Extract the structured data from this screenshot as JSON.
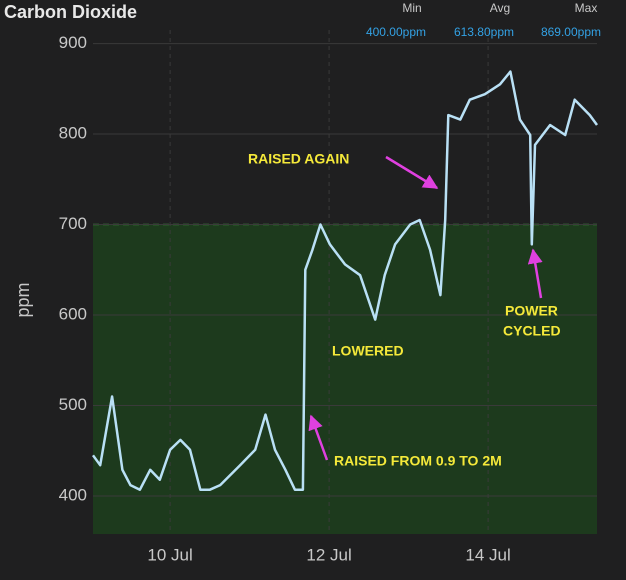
{
  "chart_data": {
    "type": "line",
    "title": "Carbon Dioxide",
    "stats": [
      {
        "label": "Min",
        "value": "400.00ppm"
      },
      {
        "label": "Avg",
        "value": "613.80ppm"
      },
      {
        "label": "Max",
        "value": "869.00ppm"
      }
    ],
    "y_label": "ppm",
    "x": [
      9.03,
      9.12,
      9.27,
      9.4,
      9.5,
      9.62,
      9.75,
      9.87,
      10.0,
      10.13,
      10.25,
      10.38,
      10.5,
      10.63,
      10.88,
      11.07,
      11.2,
      11.32,
      11.45,
      11.57,
      11.67,
      11.7,
      11.79,
      11.89,
      12.01,
      12.2,
      12.39,
      12.58,
      12.7,
      12.83,
      13.02,
      13.14,
      13.27,
      13.4,
      13.46,
      13.5,
      13.65,
      13.77,
      13.96,
      14.15,
      14.28,
      14.4,
      14.53,
      14.55,
      14.59,
      14.78,
      14.97,
      15.09,
      15.28,
      15.37
    ],
    "series": [
      {
        "name": "Carbon Dioxide",
        "color": "#b9e0f5",
        "values": [
          445,
          434,
          510,
          429,
          412,
          407,
          429,
          418,
          451,
          462,
          451,
          407,
          407,
          412,
          434,
          451,
          490,
          451,
          429,
          407,
          407,
          650,
          672,
          700,
          678,
          656,
          644,
          595,
          644,
          678,
          700,
          705,
          672,
          622,
          705,
          821,
          816,
          838,
          844,
          855,
          869,
          816,
          799,
          678,
          788,
          810,
          799,
          838,
          821,
          810
        ]
      }
    ],
    "xlim": [
      9.03,
      15.37
    ],
    "xticks": [
      {
        "value": 10,
        "label": "10 Jul"
      },
      {
        "value": 12,
        "label": "12 Jul"
      },
      {
        "value": 14,
        "label": "14 Jul"
      }
    ],
    "ylim": [
      358,
      915
    ],
    "yticks": [
      400,
      500,
      600,
      700,
      800,
      900
    ],
    "grid": true,
    "threshold": 700,
    "threshold_color": "#1d3a1d",
    "annotations": [
      "RAISED AGAIN",
      "LOWERED",
      [
        "POWER",
        "CYCLED"
      ],
      "RAISED FROM 0.9 TO 2M"
    ]
  }
}
